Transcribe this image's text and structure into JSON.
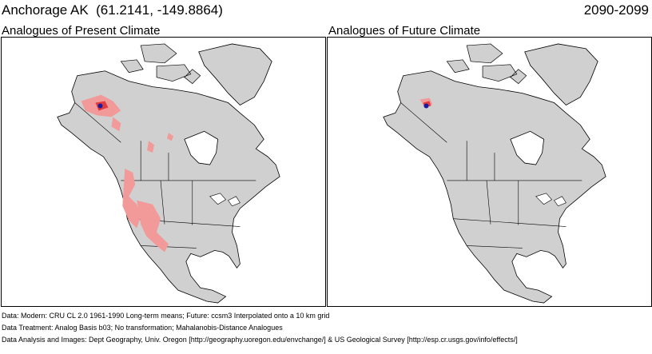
{
  "header": {
    "location": "Anchorage AK  (61.2141, -149.8864)",
    "period": "2090-2099"
  },
  "panels": [
    {
      "title": "Analogues of Present Climate",
      "highlight": "present"
    },
    {
      "title": "Analogues of Future Climate",
      "highlight": "future"
    }
  ],
  "footer": {
    "line1": "Data:  Modern: CRU CL 2.0 1961-1990 Long-term means; Future: ccsm3 Interpolated onto a 10 km grid",
    "line2": "Data Treatment:  Analog Basis b03; No transformation; Mahalanobis-Distance Analogues",
    "line3": "Data Analysis and Images:  Dept Geography, Univ. Oregon [http://geography.uoregon.edu/envchange/] & US Geological Survey [http://esp.cr.usgs.gov/info/effects/]"
  },
  "colors": {
    "land": "#d0d0d0",
    "ocean": "#ffffff",
    "boundary": "#000000",
    "analogue": "#f29a9a",
    "analogue_strong": "#e23b3b",
    "location_marker": "#1a1aa0"
  }
}
